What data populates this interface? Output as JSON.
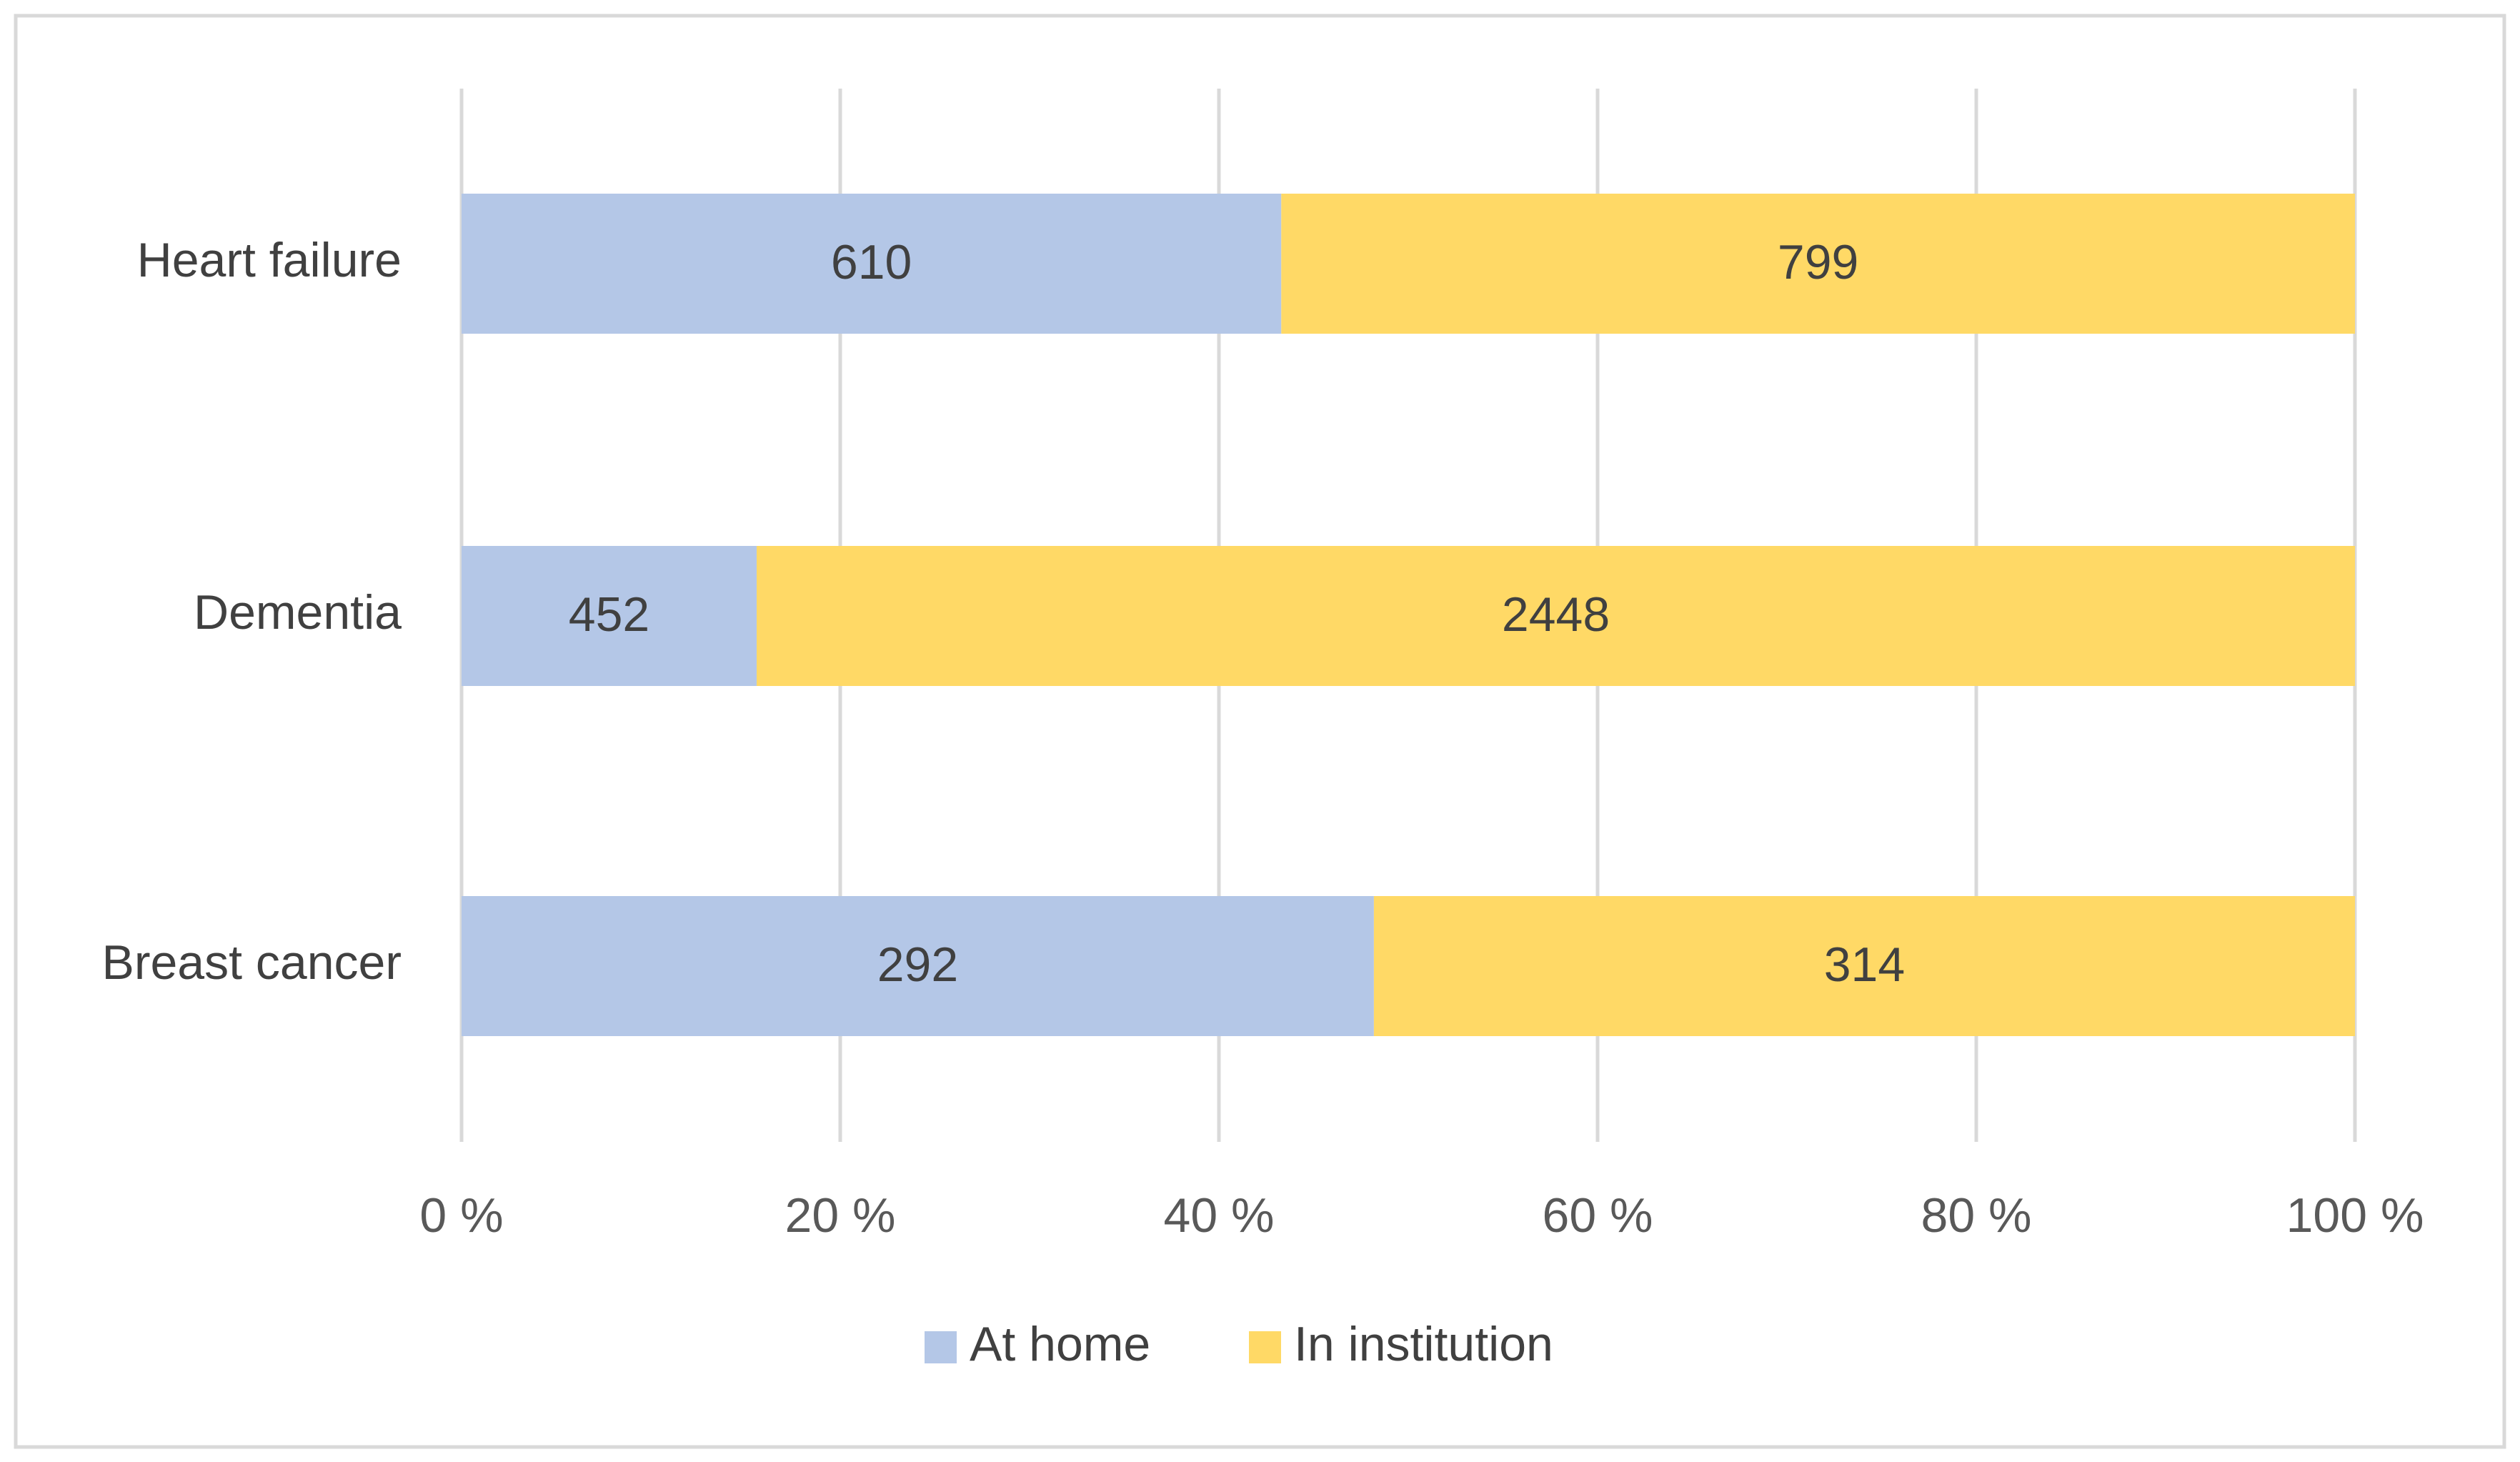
{
  "chart_data": {
    "type": "bar",
    "orientation": "horizontal",
    "stacking": "percent",
    "categories": [
      "Heart failure",
      "Dementia",
      "Breast cancer"
    ],
    "series": [
      {
        "name": "At home",
        "color": "#b4c7e7",
        "values": [
          610,
          452,
          292
        ]
      },
      {
        "name": "In institution",
        "color": "#ffd966",
        "values": [
          799,
          2448,
          314
        ]
      }
    ],
    "xlim": [
      0,
      100
    ],
    "xticks": [
      {
        "value": 0,
        "label": "0 %"
      },
      {
        "value": 20,
        "label": "20 %"
      },
      {
        "value": 40,
        "label": "40 %"
      },
      {
        "value": 60,
        "label": "60 %"
      },
      {
        "value": 80,
        "label": "80 %"
      },
      {
        "value": 100,
        "label": "100 %"
      }
    ],
    "grid": true,
    "legend": "bottom"
  }
}
